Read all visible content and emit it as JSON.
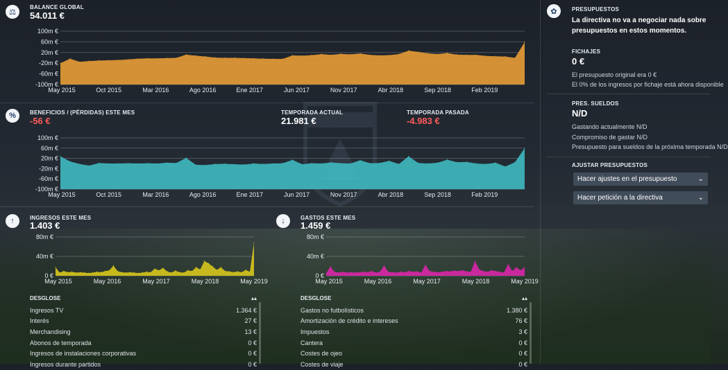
{
  "balance": {
    "label": "BALANCE GLOBAL",
    "value": "54.011 €",
    "icon": "scale-icon",
    "yticks": [
      "100m €",
      "60m €",
      "20m €",
      "-20m €",
      "-60m €",
      "-100m €"
    ],
    "xticks": [
      "May 2015",
      "Oct 2015",
      "Mar 2016",
      "Ago 2016",
      "Ene 2017",
      "Jun 2017",
      "Nov 2017",
      "Abr 2018",
      "Sep 2018",
      "Feb 2019"
    ],
    "chart_data": {
      "type": "area",
      "ylim": [
        -100,
        100
      ],
      "unit": "m €",
      "color": "#e39a35",
      "values": [
        -20,
        -3,
        -15,
        -12,
        -10,
        -9,
        -8,
        -6,
        -3,
        -2,
        -2,
        -1,
        0,
        12,
        8,
        5,
        1,
        0,
        0,
        -1,
        -2,
        -3,
        -4,
        -4,
        9,
        8,
        10,
        14,
        11,
        15,
        13,
        16,
        11,
        9,
        10,
        14,
        27,
        22,
        17,
        14,
        18,
        12,
        11,
        11,
        7,
        6,
        5,
        0,
        59
      ]
    }
  },
  "profit": {
    "label": "BENEFICIOS / (PÉRDIDAS) ESTE MES",
    "value": "-56 €",
    "current_label": "TEMPORADA ACTUAL",
    "current_value": "21.981 €",
    "previous_label": "TEMPORADA PASADA",
    "previous_value": "-4.983 €",
    "icon": "percent-icon",
    "yticks": [
      "100m €",
      "60m €",
      "20m €",
      "-20m €",
      "-60m €",
      "-100m €"
    ],
    "xticks": [
      "May 2015",
      "Oct 2015",
      "Mar 2016",
      "Ago 2016",
      "Ene 2017",
      "Jun 2017",
      "Nov 2017",
      "Abr 2018",
      "Sep 2018",
      "Feb 2019"
    ],
    "chart_data": {
      "type": "area",
      "ylim": [
        -100,
        100
      ],
      "unit": "m €",
      "color": "#3fb6bd",
      "values": [
        28,
        8,
        -2,
        -8,
        2,
        0,
        0,
        1,
        0,
        1,
        0,
        3,
        2,
        22,
        -5,
        -6,
        -2,
        -1,
        -3,
        -4,
        0,
        -2,
        0,
        1,
        14,
        -3,
        1,
        0,
        4,
        1,
        0,
        13,
        1,
        2,
        10,
        -2,
        28,
        2,
        0,
        3,
        15,
        5,
        6,
        0,
        -2,
        3,
        -12,
        5,
        60
      ]
    }
  },
  "income": {
    "label": "INGRESOS ESTE MES",
    "value": "1.403 €",
    "icon": "arrow-up-icon",
    "yticks": [
      "80m €",
      "40m €",
      "0 €"
    ],
    "xticks": [
      "May 2015",
      "May 2016",
      "May 2017",
      "May 2018",
      "May 2019"
    ],
    "chart_data": {
      "type": "area",
      "ylim": [
        0,
        100
      ],
      "unit": "m €",
      "color": "#d4c31c",
      "values": [
        22,
        8,
        12,
        9,
        10,
        8,
        9,
        8,
        7,
        8,
        10,
        9,
        12,
        14,
        26,
        12,
        9,
        8,
        9,
        8,
        7,
        8,
        10,
        9,
        18,
        14,
        20,
        11,
        8,
        13,
        9,
        8,
        14,
        12,
        22,
        16,
        38,
        32,
        24,
        15,
        22,
        12,
        11,
        9,
        11,
        9,
        15,
        10,
        85
      ]
    },
    "breakdown_label": "DESGLOSE",
    "rows": [
      {
        "name": "Ingresos TV",
        "value": "1.364 €"
      },
      {
        "name": "Interés",
        "value": "27 €"
      },
      {
        "name": "Merchandising",
        "value": "13 €"
      },
      {
        "name": "Abonos de temporada",
        "value": "0 €"
      },
      {
        "name": "Ingresos de instalaciones corporativas",
        "value": "0 €"
      },
      {
        "name": "Ingresos durante partidos",
        "value": "0 €"
      }
    ]
  },
  "expenses": {
    "label": "GASTOS ESTE MES",
    "value": "1.459 €",
    "icon": "arrow-down-icon",
    "yticks": [
      "80m €",
      "40m €",
      "0 €"
    ],
    "xticks": [
      "May 2015",
      "May 2016",
      "May 2017",
      "May 2018",
      "May 2019"
    ],
    "chart_data": {
      "type": "area",
      "ylim": [
        0,
        100
      ],
      "unit": "m €",
      "color": "#d726a7",
      "values": [
        6,
        24,
        10,
        8,
        10,
        8,
        9,
        8,
        9,
        10,
        9,
        12,
        8,
        10,
        26,
        10,
        9,
        8,
        10,
        9,
        12,
        10,
        11,
        8,
        28,
        12,
        10,
        9,
        10,
        12,
        11,
        13,
        12,
        14,
        11,
        10,
        38,
        16,
        12,
        10,
        14,
        12,
        10,
        8,
        30,
        12,
        22,
        14,
        22
      ]
    },
    "breakdown_label": "DESGLOSE",
    "rows": [
      {
        "name": "Gastos no futbolísticos",
        "value": "1.380 €"
      },
      {
        "name": "Amortización de crédito e intereses",
        "value": "76 €"
      },
      {
        "name": "Impuestos",
        "value": "3 €"
      },
      {
        "name": "Cantera",
        "value": "0 €"
      },
      {
        "name": "Costes de ojeo",
        "value": "0 €"
      },
      {
        "name": "Costes de viaje",
        "value": "0 €"
      }
    ]
  },
  "sidebar": {
    "icon": "piggy-bank-icon",
    "budget_label": "PRESUPUESTOS",
    "budget_text": "La directiva no va a negociar nada sobre presupuestos en estos momentos.",
    "transfers_label": "FICHAJES",
    "transfers_value": "0 €",
    "transfers_line1": "El presupuesto original era 0 €",
    "transfers_line2": "El 0% de los ingresos por fichaje está ahora disponible",
    "wages_label": "PRES. SUELDOS",
    "wages_value": "N/D",
    "wages_line1": "Gastando actualmente N/D",
    "wages_line2": "Compromiso de gastar N/D",
    "wages_line3": "Presupuesto para sueldos de la próxima temporada N/D",
    "adjust_label": "AJUSTAR PRESUPUESTOS",
    "dropdown1": "Hacer ajustes en el presupuesto",
    "dropdown2": "Hacer petición a la directiva"
  }
}
